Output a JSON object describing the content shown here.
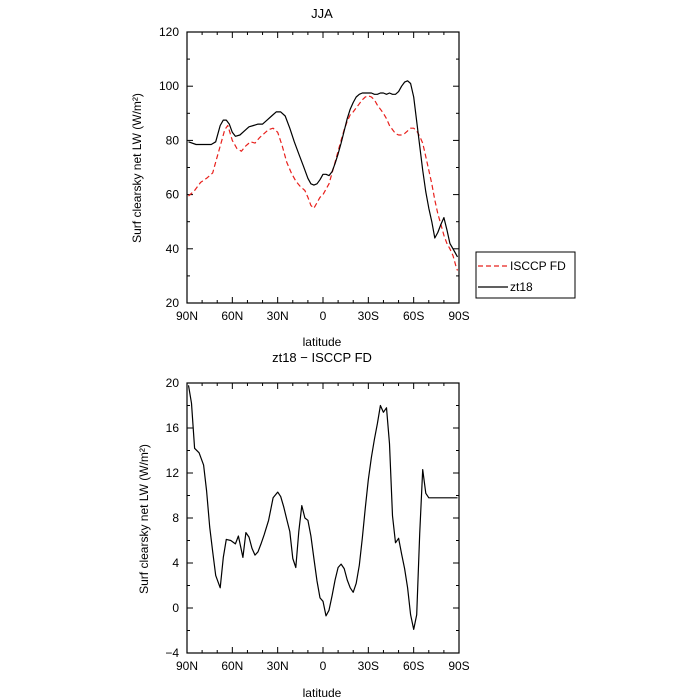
{
  "chart_data": [
    {
      "type": "line",
      "title": "JJA",
      "xlabel": "latitude",
      "ylabel": "Surf clearsky net LW (W/m²)",
      "xlim": [
        -90,
        90
      ],
      "ylim": [
        20,
        120
      ],
      "xticks": [
        {
          "value": -90,
          "label": "90N"
        },
        {
          "value": -60,
          "label": "60N"
        },
        {
          "value": -30,
          "label": "30N"
        },
        {
          "value": 0,
          "label": "0"
        },
        {
          "value": 30,
          "label": "30S"
        },
        {
          "value": 60,
          "label": "60S"
        },
        {
          "value": 90,
          "label": "90S"
        }
      ],
      "yticks": [
        20,
        40,
        60,
        80,
        100,
        120
      ],
      "legend_position": "right, outside plot",
      "series": [
        {
          "name": "ISCCP FD",
          "color": "#e8201c",
          "dash": "dashed",
          "x": [
            -89,
            -85,
            -81,
            -77,
            -73,
            -70,
            -67,
            -65,
            -63,
            -60,
            -57,
            -54,
            -51,
            -48,
            -45,
            -42,
            -39,
            -36,
            -33,
            -30,
            -27,
            -24,
            -21,
            -18,
            -15,
            -12,
            -10,
            -8,
            -6,
            -4,
            -2,
            0,
            2,
            4,
            6,
            8,
            10,
            12,
            14,
            16,
            18,
            20,
            22,
            24,
            26,
            28,
            30,
            32,
            34,
            36,
            38,
            40,
            42,
            44,
            46,
            48,
            50,
            52,
            54,
            56,
            58,
            60,
            62,
            64,
            66,
            68,
            70,
            72,
            74,
            76,
            78,
            80,
            82,
            84,
            86,
            88,
            89
          ],
          "y": [
            59.5,
            61.5,
            64.5,
            66,
            68,
            74,
            80,
            84,
            85.5,
            80,
            77,
            76,
            78,
            79.5,
            79,
            81,
            82.5,
            84,
            84.5,
            83,
            78,
            72,
            68,
            65,
            63,
            61.5,
            59,
            56,
            55,
            57,
            59,
            60,
            62,
            64,
            68,
            72,
            76,
            80,
            84,
            87,
            89.5,
            90.5,
            92,
            93.5,
            95,
            96,
            96.5,
            96,
            95,
            93,
            91.5,
            90,
            88,
            85.5,
            84,
            82.5,
            82,
            82,
            82.5,
            83.5,
            84.5,
            84.5,
            83.5,
            81.5,
            79,
            74,
            69,
            64,
            58,
            53,
            49,
            45,
            42,
            40,
            37.5,
            33.5,
            32
          ]
        },
        {
          "name": "zt18",
          "color": "#000000",
          "dash": "solid",
          "x": [
            -89,
            -84,
            -80,
            -77,
            -74,
            -71,
            -68,
            -66,
            -64,
            -62,
            -60,
            -58,
            -55,
            -52,
            -49,
            -46,
            -43,
            -40,
            -37,
            -34,
            -31,
            -28,
            -25,
            -22,
            -19,
            -16,
            -13,
            -10,
            -8,
            -6,
            -4,
            -2,
            0,
            2,
            4,
            6,
            8,
            10,
            12,
            14,
            16,
            18,
            20,
            22,
            24,
            26,
            28,
            30,
            32,
            34,
            36,
            38,
            40,
            42,
            44,
            46,
            48,
            50,
            52,
            54,
            56,
            58,
            60,
            62,
            64,
            66,
            68,
            70,
            72,
            74,
            76,
            78,
            80,
            82,
            84,
            86,
            88,
            89
          ],
          "y": [
            79.5,
            78.5,
            78.5,
            78.5,
            78.5,
            79.5,
            85.5,
            87.5,
            87.5,
            86,
            83,
            81.5,
            82,
            83.5,
            85,
            85.5,
            86,
            86,
            87.5,
            89,
            90.5,
            90.5,
            89,
            84.5,
            79.5,
            75,
            70.5,
            66,
            64,
            63.5,
            64,
            65.5,
            67.5,
            67.5,
            67,
            68.5,
            71.5,
            75,
            79,
            83.5,
            88,
            91.5,
            94,
            96,
            97,
            97.5,
            97.5,
            97.5,
            97.5,
            97,
            97,
            97.5,
            97.5,
            97,
            97.5,
            97,
            97,
            98,
            100,
            101.5,
            102,
            101,
            96,
            87,
            78,
            69,
            61,
            55,
            50,
            44,
            46,
            49,
            51.5,
            47,
            42,
            40,
            38,
            37
          ]
        }
      ]
    },
    {
      "type": "line",
      "title": "zt18 − ISCCP FD",
      "xlabel": "latitude",
      "ylabel": "Surf clearsky net LW (W/m²)",
      "xlim": [
        -90,
        90
      ],
      "ylim": [
        -4,
        20
      ],
      "xticks": [
        {
          "value": -90,
          "label": "90N"
        },
        {
          "value": -60,
          "label": "60N"
        },
        {
          "value": -30,
          "label": "30N"
        },
        {
          "value": 0,
          "label": "0"
        },
        {
          "value": 30,
          "label": "30S"
        },
        {
          "value": 60,
          "label": "60S"
        },
        {
          "value": 90,
          "label": "90S"
        }
      ],
      "yticks": [
        -4,
        0,
        4,
        8,
        12,
        16,
        20
      ],
      "series": [
        {
          "color": "#000000",
          "dash": "solid",
          "x": [
            -89,
            -87,
            -85,
            -82,
            -79,
            -77,
            -75,
            -73,
            -71,
            -68,
            -66,
            -64,
            -61,
            -58,
            -56,
            -53,
            -51,
            -49,
            -47,
            -45,
            -43,
            -41,
            -39,
            -36,
            -33,
            -30,
            -28,
            -26,
            -24,
            -22,
            -20,
            -18,
            -16,
            -14,
            -12,
            -10,
            -8,
            -6,
            -4,
            -2,
            0,
            2,
            4,
            6,
            8,
            10,
            12,
            14,
            16,
            18,
            20,
            22,
            24,
            26,
            28,
            30,
            32,
            34,
            36,
            38,
            40,
            42,
            44,
            46,
            48,
            50,
            52,
            54,
            56,
            58,
            60,
            62,
            64,
            66,
            68,
            70,
            72,
            74,
            76,
            78,
            80,
            82,
            84,
            86,
            88,
            89
          ],
          "y": [
            19.8,
            18.2,
            14.2,
            13.8,
            12.7,
            10.4,
            7.2,
            5,
            2.9,
            1.8,
            4.5,
            6.1,
            6,
            5.7,
            6.4,
            4.5,
            6.7,
            6.3,
            5.3,
            4.7,
            5,
            5.7,
            6.5,
            7.8,
            9.8,
            10.3,
            9.9,
            9,
            7.9,
            6.8,
            4.4,
            3.6,
            6.8,
            9.1,
            8,
            7.8,
            6.4,
            4.4,
            2.4,
            0.9,
            0.6,
            -0.7,
            -0.2,
            1.1,
            2.5,
            3.6,
            3.9,
            3.5,
            2.5,
            1.8,
            1.4,
            2.2,
            3.8,
            6.2,
            8.9,
            11.4,
            13.4,
            15,
            16.4,
            18,
            17.4,
            17.8,
            14.6,
            8.2,
            5.8,
            6.2,
            4.8,
            3.5,
            1.8,
            -0.6,
            -1.9,
            -0.6,
            6.6,
            12.3,
            10.2,
            9.8,
            9.8,
            9.8,
            9.8,
            9.8,
            9.8,
            9.8,
            9.8,
            9.8,
            9.8,
            9.8
          ]
        }
      ]
    }
  ],
  "legend": {
    "entries": [
      {
        "label": "ISCCP FD",
        "color": "#e8201c",
        "dash": "dashed"
      },
      {
        "label": "zt18",
        "color": "#000000",
        "dash": "solid"
      }
    ]
  }
}
